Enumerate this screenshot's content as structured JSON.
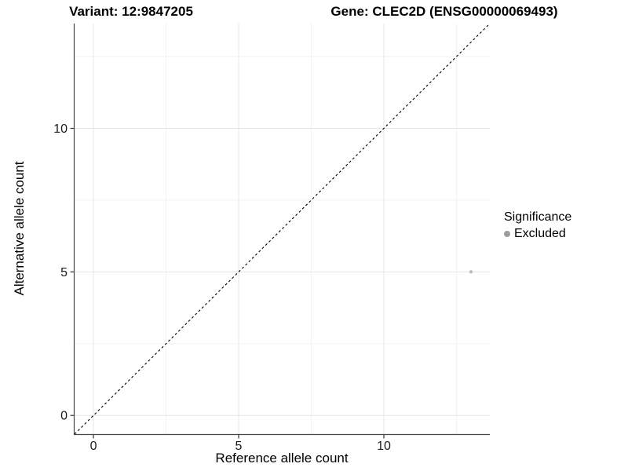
{
  "header": {
    "variant_title": "Variant: 12:9847205",
    "gene_title": "Gene: CLEC2D (ENSG00000069493)"
  },
  "chart_data": {
    "type": "scatter",
    "xlabel": "Reference allele count",
    "ylabel": "Alternative allele count",
    "x_domain": [
      -0.65,
      13.65
    ],
    "y_domain": [
      -0.65,
      13.65
    ],
    "x_major_ticks": [
      0,
      5,
      10
    ],
    "y_major_ticks": [
      0,
      5,
      10
    ],
    "x_minor_gridlines": [
      2.5,
      7.5,
      12.5
    ],
    "y_minor_gridlines": [
      2.5,
      7.5,
      12.5
    ],
    "grid": "major+minor",
    "points": [
      {
        "x": 13,
        "y": 5,
        "significance": "Excluded"
      }
    ],
    "identity_line": {
      "slope": 1,
      "intercept": 0,
      "style": "dashed"
    },
    "legend": {
      "position": "right",
      "title": "Significance",
      "entries": [
        {
          "label": "Excluded",
          "marker_color": "#9e9e9e"
        }
      ]
    }
  },
  "colors": {
    "point": "#bfbfbf",
    "grid_major": "#e6e6e6",
    "grid_minor": "#f2f2f2",
    "axis_line": "#464646",
    "tick_mark": "#333333",
    "tick_label": "#1a1a1a",
    "identity_line": "#000000"
  }
}
